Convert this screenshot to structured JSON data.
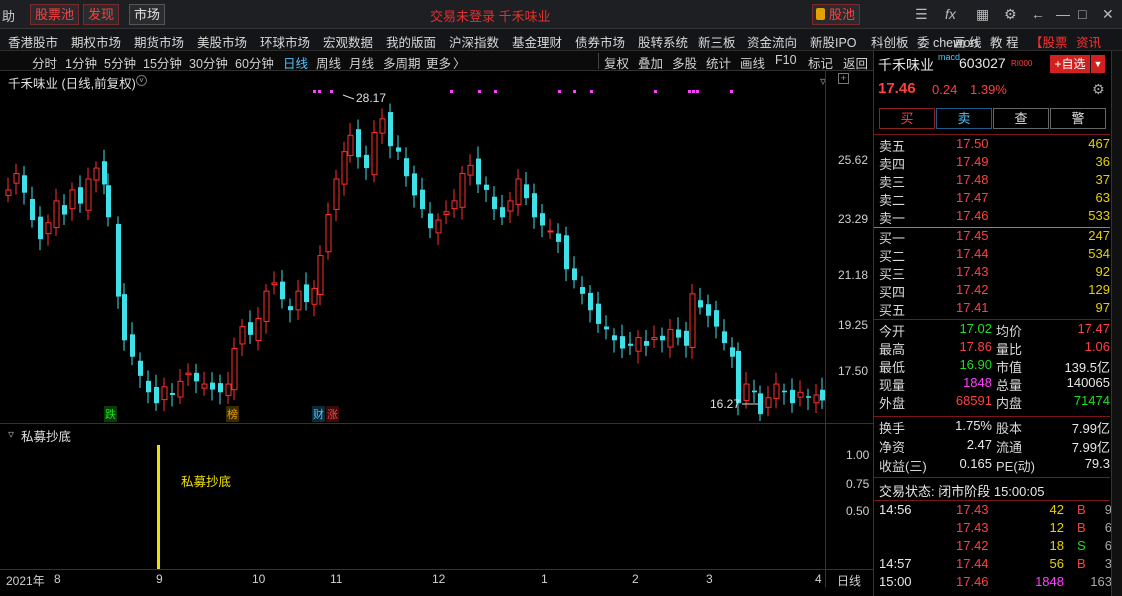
{
  "titlebar": {
    "left_label": "助",
    "buttons": [
      "股票池",
      "发现",
      "市场"
    ],
    "title": "交易未登录  千禾味业",
    "stock_pool_label": "股池"
  },
  "menubar": [
    "香港股市",
    "期权市场",
    "期货市场",
    "美股市场",
    "环球市场",
    "宏观数据",
    "我的版面",
    "沪深指数",
    "基金理财",
    "债券市场",
    "股转系统",
    "新三板",
    "资金流向",
    "新股IPO",
    "科创板",
    "委 chevron",
    "画 线",
    "教 程"
  ],
  "menubar_right": {
    "stock": "【股票",
    "info": "资讯"
  },
  "periods": [
    "分时",
    "1分钟",
    "5分钟",
    "15分钟",
    "30分钟",
    "60分钟",
    "日线",
    "周线",
    "月线",
    "多周期",
    "更多"
  ],
  "active_period": "日线",
  "tools": [
    "复权",
    "叠加",
    "多股",
    "统计",
    "画线",
    "F10",
    "标记",
    "返回"
  ],
  "chart": {
    "title": "千禾味业 (日线,前复权)",
    "high_label": "28.17",
    "low_label": "16.27",
    "y_ticks": [
      "25.62",
      "23.29",
      "21.18",
      "19.25",
      "17.50"
    ],
    "events": [
      {
        "text": "跌",
        "color": "#1ee01e"
      },
      {
        "text": "榜",
        "color": "#e8a000"
      },
      {
        "text": "财",
        "color": "#4fc3f7"
      },
      {
        "text": "涨",
        "color": "#ff4040"
      }
    ]
  },
  "indicator": {
    "title": "私募抄底",
    "label": "私募抄底",
    "y_ticks": [
      "1.00",
      "0.75",
      "0.50"
    ]
  },
  "xaxis": {
    "year": "2021年",
    "months": [
      "8",
      "9",
      "10",
      "11",
      "12",
      "1",
      "2",
      "3",
      "4"
    ],
    "period": "日线"
  },
  "quote": {
    "name": "千禾味业",
    "code": "603027",
    "tag": "RI000",
    "add_label": "+自选",
    "price": "17.46",
    "change": "0.24",
    "change_pct": "1.39%",
    "buy": "买",
    "sell": "卖",
    "query": "查",
    "alert": "警"
  },
  "asks": [
    {
      "label": "卖五",
      "price": "17.50",
      "vol": "467"
    },
    {
      "label": "卖四",
      "price": "17.49",
      "vol": "36"
    },
    {
      "label": "卖三",
      "price": "17.48",
      "vol": "37"
    },
    {
      "label": "卖二",
      "price": "17.47",
      "vol": "63"
    },
    {
      "label": "卖一",
      "price": "17.46",
      "vol": "533"
    }
  ],
  "bids": [
    {
      "label": "买一",
      "price": "17.45",
      "vol": "247"
    },
    {
      "label": "买二",
      "price": "17.44",
      "vol": "534"
    },
    {
      "label": "买三",
      "price": "17.43",
      "vol": "92"
    },
    {
      "label": "买四",
      "price": "17.42",
      "vol": "129"
    },
    {
      "label": "买五",
      "price": "17.41",
      "vol": "97"
    }
  ],
  "stats": [
    {
      "l1": "今开",
      "v1": "17.02",
      "c1": "green",
      "l2": "均价",
      "v2": "17.47",
      "c2": "red"
    },
    {
      "l1": "最高",
      "v1": "17.86",
      "c1": "red",
      "l2": "量比",
      "v2": "1.06",
      "c2": "red"
    },
    {
      "l1": "最低",
      "v1": "16.90",
      "c1": "green",
      "l2": "市值",
      "v2": "139.5亿",
      "c2": "white"
    },
    {
      "l1": "现量",
      "v1": "1848",
      "c1": "mag",
      "l2": "总量",
      "v2": "140065",
      "c2": "white"
    },
    {
      "l1": "外盘",
      "v1": "68591",
      "c1": "red",
      "l2": "内盘",
      "v2": "71474",
      "c2": "green"
    }
  ],
  "stats2": [
    {
      "l1": "换手",
      "v1": "1.75%",
      "l2": "股本",
      "v2": "7.99亿"
    },
    {
      "l1": "净资",
      "v1": "2.47",
      "l2": "流通",
      "v2": "7.99亿"
    },
    {
      "l1": "收益(三)",
      "v1": "0.165",
      "l2": "PE(动)",
      "v2": "79.3"
    }
  ],
  "trade_status": "交易状态: 闭市阶段 15:00:05",
  "ticks": [
    {
      "time": "14:56",
      "price": "17.43",
      "vol": "42",
      "bs": "B",
      "n": "9",
      "vc": "#e8d000",
      "bc": "red"
    },
    {
      "time": "",
      "price": "17.43",
      "vol": "12",
      "bs": "B",
      "n": "6",
      "vc": "#e8d000",
      "bc": "red"
    },
    {
      "time": "",
      "price": "17.42",
      "vol": "18",
      "bs": "S",
      "n": "6",
      "vc": "#e8d000",
      "bc": "green"
    },
    {
      "time": "14:57",
      "price": "17.44",
      "vol": "56",
      "bs": "B",
      "n": "3",
      "vc": "#e8d000",
      "bc": "red"
    },
    {
      "time": "15:00",
      "price": "17.46",
      "vol": "1848",
      "bs": "",
      "n": "163",
      "vc": "#ff40ff",
      "bc": "red"
    }
  ],
  "colors": {
    "up": "#ff3030",
    "down": "#40e0e8",
    "border": "#7a1616"
  }
}
